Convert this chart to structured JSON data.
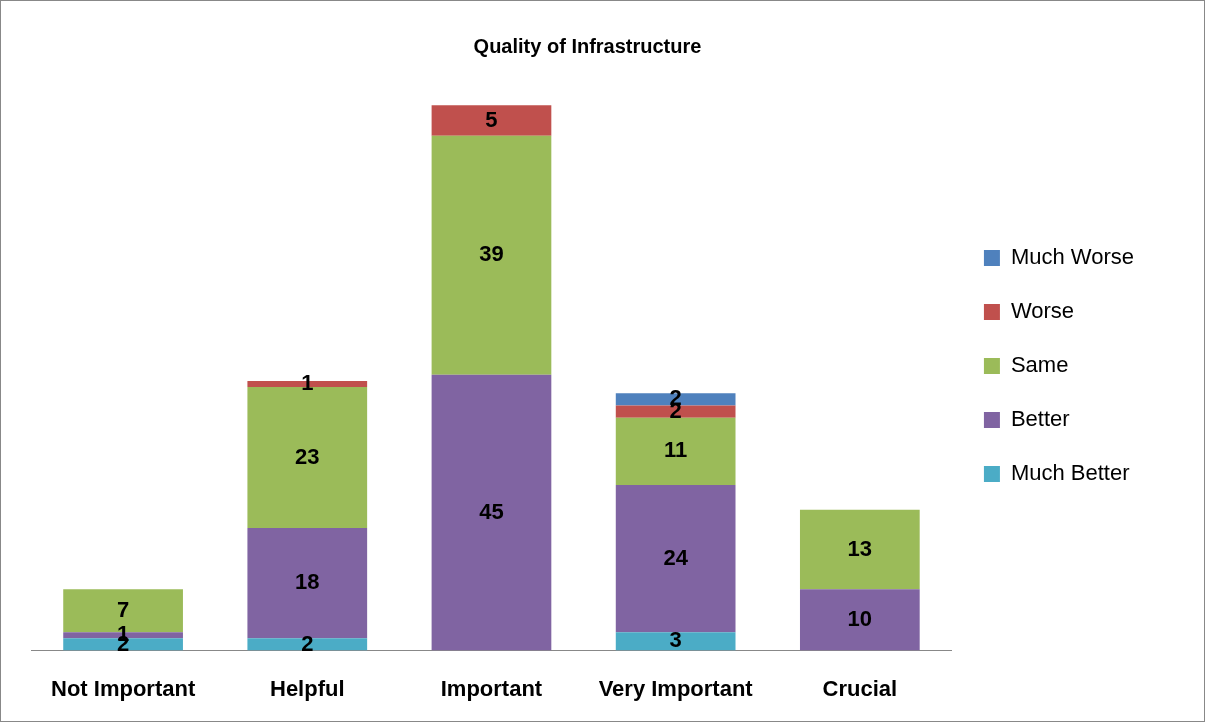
{
  "chart_data": {
    "type": "bar",
    "title": "Quality of Infrastructure",
    "stacked": true,
    "data_labels": true,
    "legend": "right",
    "grid": false,
    "categories": [
      "Not Important",
      "Helpful",
      "Important",
      "Very Important",
      "Crucial"
    ],
    "series": [
      {
        "name": "Much Better",
        "color": "#4bacc6",
        "values": [
          2,
          2,
          null,
          3,
          null
        ]
      },
      {
        "name": "Better",
        "color": "#8064a2",
        "values": [
          1,
          18,
          45,
          24,
          10
        ]
      },
      {
        "name": "Same",
        "color": "#9bbb59",
        "values": [
          7,
          23,
          39,
          11,
          13
        ]
      },
      {
        "name": "Worse",
        "color": "#c0504d",
        "values": [
          null,
          1,
          5,
          2,
          null
        ]
      },
      {
        "name": "Much Worse",
        "color": "#4f81bd",
        "values": [
          null,
          null,
          null,
          2,
          null
        ]
      }
    ]
  }
}
